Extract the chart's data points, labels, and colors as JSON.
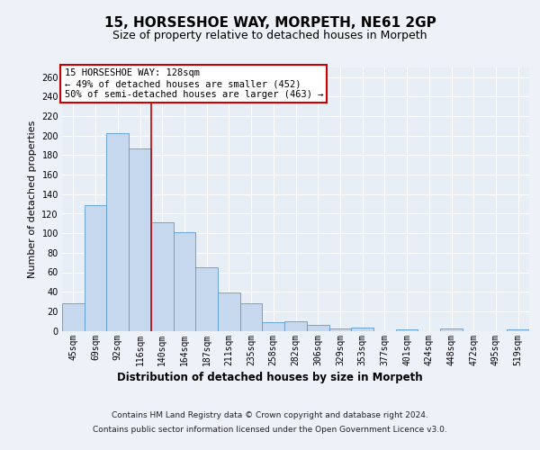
{
  "title": "15, HORSESHOE WAY, MORPETH, NE61 2GP",
  "subtitle": "Size of property relative to detached houses in Morpeth",
  "xlabel": "Distribution of detached houses by size in Morpeth",
  "ylabel": "Number of detached properties",
  "categories": [
    "45sqm",
    "69sqm",
    "92sqm",
    "116sqm",
    "140sqm",
    "164sqm",
    "187sqm",
    "211sqm",
    "235sqm",
    "258sqm",
    "282sqm",
    "306sqm",
    "329sqm",
    "353sqm",
    "377sqm",
    "401sqm",
    "424sqm",
    "448sqm",
    "472sqm",
    "495sqm",
    "519sqm"
  ],
  "values": [
    28,
    129,
    203,
    187,
    111,
    101,
    65,
    39,
    28,
    9,
    10,
    6,
    2,
    3,
    0,
    1,
    0,
    2,
    0,
    0,
    1
  ],
  "bar_color_normal": "#c5d8ed",
  "bar_edgecolor": "#5b9bd5",
  "vline_x": 3.5,
  "vline_color": "#cc0000",
  "annotation_text": "15 HORSESHOE WAY: 128sqm\n← 49% of detached houses are smaller (452)\n50% of semi-detached houses are larger (463) →",
  "annotation_box_color": "#ffffff",
  "annotation_box_edgecolor": "#cc0000",
  "footer_line1": "Contains HM Land Registry data © Crown copyright and database right 2024.",
  "footer_line2": "Contains public sector information licensed under the Open Government Licence v3.0.",
  "ylim": [
    0,
    270
  ],
  "yticks": [
    0,
    20,
    40,
    60,
    80,
    100,
    120,
    140,
    160,
    180,
    200,
    220,
    240,
    260
  ],
  "background_color": "#edf2f9",
  "plot_background": "#e8eef6",
  "title_fontsize": 11,
  "subtitle_fontsize": 9,
  "tick_fontsize": 7,
  "ylabel_fontsize": 8,
  "xlabel_fontsize": 8.5,
  "annotation_fontsize": 7.5
}
